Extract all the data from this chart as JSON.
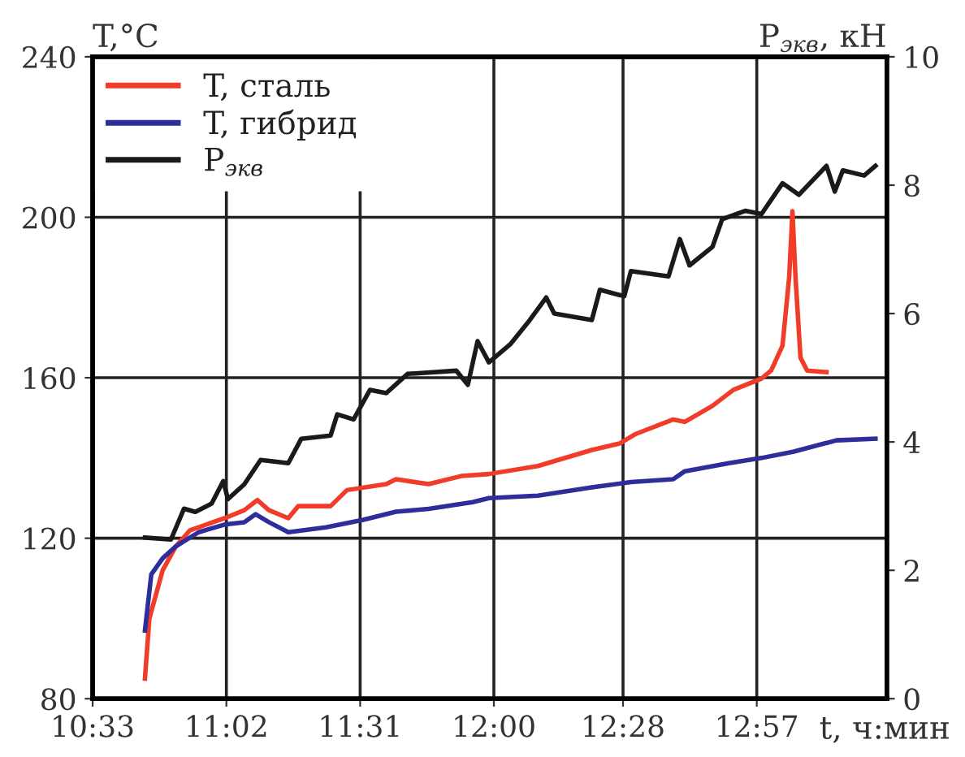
{
  "chart_data": {
    "type": "line",
    "ylabel": "T,°C",
    "y2label": "P$_{экв}$, кН",
    "xlabel": "t, ч:мин",
    "xlim": [
      10.55,
      13.42
    ],
    "xticks": [
      {
        "value": 10.55,
        "label": "10:33"
      },
      {
        "value": 11.0333,
        "label": "11:02"
      },
      {
        "value": 11.5167,
        "label": "11:31"
      },
      {
        "value": 12.0,
        "label": "12:00"
      },
      {
        "value": 12.4667,
        "label": "12:28"
      },
      {
        "value": 12.95,
        "label": "12:57"
      }
    ],
    "ylim": [
      80,
      240
    ],
    "yticks": [
      80,
      120,
      160,
      200,
      240
    ],
    "y2lim": [
      0,
      10
    ],
    "y2ticks": [
      0,
      2,
      4,
      6,
      8,
      10
    ],
    "grid": true,
    "legend": "top left",
    "line_style": "solid",
    "marker": "none",
    "series": [
      {
        "name": "T, сталь",
        "color": "#f03c28",
        "x": [
          10.739,
          10.755,
          10.803,
          10.851,
          10.902,
          11.027,
          11.098,
          11.145,
          11.187,
          11.257,
          11.293,
          11.41,
          11.469,
          11.611,
          11.646,
          11.764,
          11.882,
          11.982,
          12.159,
          12.354,
          12.454,
          12.513,
          12.648,
          12.69,
          12.79,
          12.866,
          12.967,
          13.002,
          13.043,
          13.067,
          13.079,
          13.09,
          13.108,
          13.132,
          13.202
        ],
        "values": [
          85,
          100,
          112,
          118,
          122,
          125,
          127,
          129.5,
          127,
          125,
          128,
          128,
          132,
          133.5,
          134.7,
          133.5,
          135.5,
          136,
          138,
          142,
          143.6,
          146,
          149.6,
          149,
          153,
          157,
          159.8,
          161.8,
          168,
          185,
          201.5,
          185,
          165,
          161.8,
          161.4
        ]
      },
      {
        "name": "T, гибрид",
        "color": "#2e2e9a",
        "x": [
          10.739,
          10.762,
          10.803,
          10.851,
          10.933,
          11.027,
          11.098,
          11.139,
          11.187,
          11.257,
          11.393,
          11.528,
          11.646,
          11.764,
          11.923,
          11.982,
          12.159,
          12.354,
          12.495,
          12.648,
          12.69,
          12.849,
          12.967,
          13.084,
          13.238,
          13.379
        ],
        "values": [
          97,
          111,
          115,
          118,
          121.5,
          123.4,
          124,
          126,
          124,
          121.5,
          122.7,
          124.6,
          126.6,
          127.3,
          129,
          130,
          130.6,
          132.7,
          134,
          134.7,
          136.7,
          138.7,
          140,
          141.6,
          144.4,
          144.8
        ]
      },
      {
        "name": "P$_{экв}$",
        "color": "#1a1a1a",
        "axis": "y2",
        "x": [
          10.739,
          10.833,
          10.88,
          10.921,
          10.98,
          11.022,
          11.039,
          11.098,
          11.157,
          11.257,
          11.304,
          11.41,
          11.434,
          11.493,
          11.552,
          11.611,
          11.688,
          11.864,
          11.906,
          11.941,
          11.982,
          12.059,
          12.13,
          12.189,
          12.218,
          12.354,
          12.383,
          12.471,
          12.495,
          12.631,
          12.672,
          12.707,
          12.79,
          12.825,
          12.908,
          12.967,
          13.043,
          13.102,
          13.202,
          13.232,
          13.261,
          13.338,
          13.379
        ],
        "values": [
          2.51,
          2.48,
          2.96,
          2.91,
          3.04,
          3.39,
          3.11,
          3.34,
          3.72,
          3.67,
          4.05,
          4.1,
          4.43,
          4.35,
          4.81,
          4.76,
          5.06,
          5.11,
          4.89,
          5.57,
          5.24,
          5.52,
          5.9,
          6.25,
          6.0,
          5.9,
          6.37,
          6.27,
          6.66,
          6.58,
          7.16,
          6.75,
          7.04,
          7.47,
          7.6,
          7.55,
          8.03,
          7.85,
          8.3,
          7.9,
          8.23,
          8.15,
          8.3
        ]
      }
    ]
  }
}
